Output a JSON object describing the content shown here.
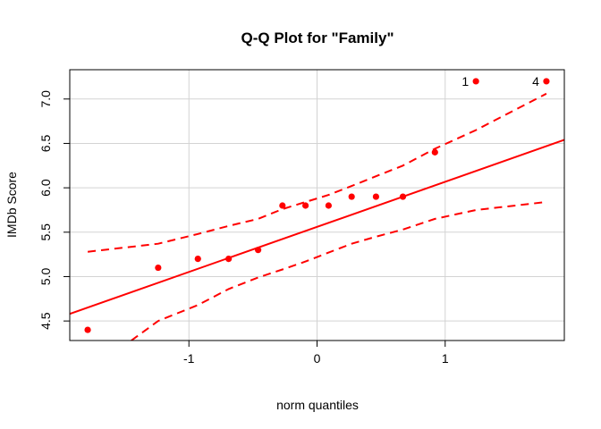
{
  "chart_data": {
    "type": "scatter",
    "title": "Q-Q Plot for \"Family\"",
    "xlabel": "norm quantiles",
    "ylabel": "IMDb Score",
    "xlim": [
      -1.93,
      1.93
    ],
    "ylim": [
      4.28,
      7.33
    ],
    "x_ticks": [
      -1,
      0,
      1
    ],
    "y_ticks": [
      4.5,
      5.0,
      5.5,
      6.0,
      6.5,
      7.0
    ],
    "y_tick_labels": [
      "4.5",
      "5.0",
      "5.5",
      "6.0",
      "6.5",
      "7.0"
    ],
    "x_tick_labels": [
      "-1",
      "0",
      "1"
    ],
    "grid": true,
    "color": "#ff0000",
    "points": {
      "x": [
        -1.79,
        -1.24,
        -0.93,
        -0.69,
        -0.46,
        -0.27,
        -0.09,
        0.09,
        0.27,
        0.46,
        0.67,
        0.92,
        1.24,
        1.79
      ],
      "y": [
        4.4,
        5.1,
        5.2,
        5.2,
        5.3,
        5.8,
        5.8,
        5.8,
        5.9,
        5.9,
        5.9,
        6.4,
        7.2,
        7.2
      ]
    },
    "point_labels": [
      {
        "text": "1",
        "x": 1.24,
        "y": 7.2
      },
      {
        "text": "4",
        "x": 1.79,
        "y": 7.2
      }
    ],
    "reference_line": {
      "x": [
        -1.93,
        1.93
      ],
      "y": [
        4.58,
        6.54
      ]
    },
    "upper_envelope": {
      "x": [
        -1.79,
        -1.24,
        -0.93,
        -0.69,
        -0.46,
        -0.27,
        -0.09,
        0.09,
        0.27,
        0.46,
        0.67,
        0.92,
        1.24,
        1.79
      ],
      "y": [
        5.28,
        5.37,
        5.48,
        5.57,
        5.65,
        5.76,
        5.84,
        5.92,
        6.02,
        6.13,
        6.25,
        6.44,
        6.65,
        7.06
      ]
    },
    "lower_envelope": {
      "x": [
        -1.45,
        -1.24,
        -0.93,
        -0.69,
        -0.46,
        -0.27,
        -0.09,
        0.09,
        0.27,
        0.46,
        0.67,
        0.92,
        1.24,
        1.79
      ],
      "y": [
        4.28,
        4.5,
        4.68,
        4.86,
        4.99,
        5.08,
        5.17,
        5.27,
        5.37,
        5.45,
        5.53,
        5.65,
        5.75,
        5.84
      ]
    }
  }
}
